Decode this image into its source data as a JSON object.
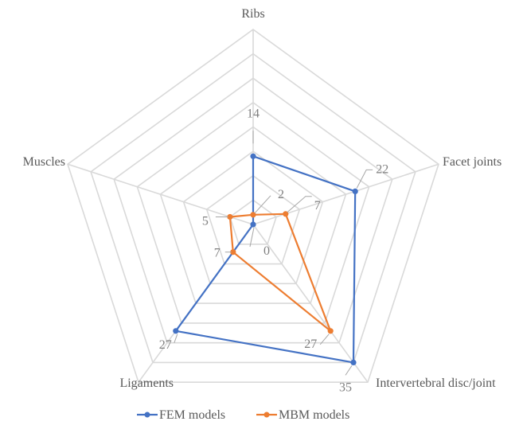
{
  "chart_data": {
    "type": "radar",
    "categories": [
      "Ribs",
      "Facet joints",
      "Intervertebral disc/joint",
      "Ligaments",
      "Muscles"
    ],
    "series": [
      {
        "name": "FEM models",
        "values": [
          14,
          22,
          35,
          27,
          0
        ],
        "color": "#4472c4"
      },
      {
        "name": "MBM models",
        "values": [
          2,
          7,
          27,
          7,
          5
        ],
        "color": "#ed7d31"
      }
    ],
    "rmax": 40,
    "grid_levels": 8,
    "grid": true,
    "legend_position": "bottom",
    "grid_color": "#d9d9d9",
    "leader_color": "#a6a6a6",
    "data_labels": [
      {
        "category": "Ribs",
        "series": "FEM models",
        "text": "14"
      },
      {
        "category": "Ribs",
        "series": "MBM models",
        "text": "2"
      },
      {
        "category": "Facet joints",
        "series": "FEM models",
        "text": "22"
      },
      {
        "category": "Facet joints",
        "series": "MBM models",
        "text": "7"
      },
      {
        "category": "Intervertebral disc/joint",
        "series": "FEM models",
        "text": "35"
      },
      {
        "category": "Intervertebral disc/joint",
        "series": "MBM models",
        "text": "27"
      },
      {
        "category": "Ligaments",
        "series": "FEM models",
        "text": "27"
      },
      {
        "category": "Ligaments",
        "series": "MBM models",
        "text": "7"
      },
      {
        "category": "Muscles",
        "series": "FEM models",
        "text": "0"
      },
      {
        "category": "Muscles",
        "series": "MBM models",
        "text": "5"
      }
    ]
  }
}
